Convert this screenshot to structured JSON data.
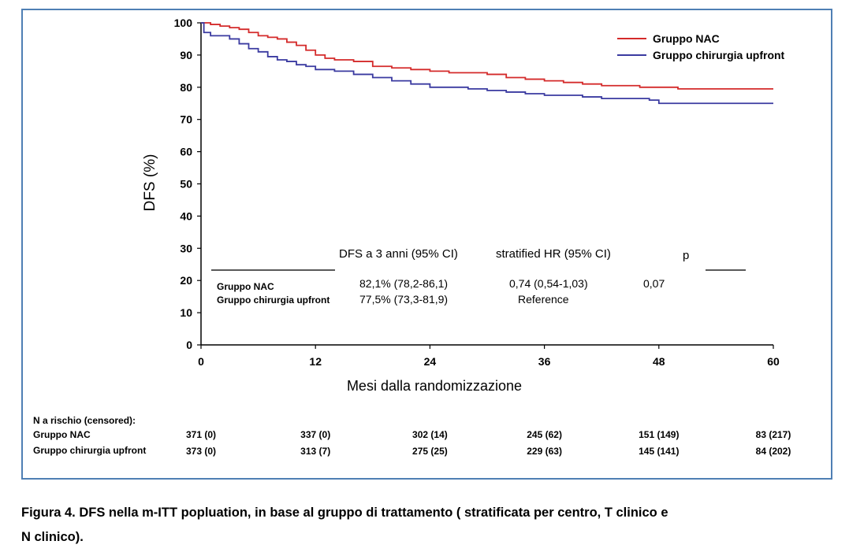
{
  "chart_data": {
    "type": "line",
    "ylabel": "DFS (%)",
    "xlabel": "Mesi dalla randomizzazione",
    "ylim": [
      0,
      100
    ],
    "xlim": [
      0,
      60
    ],
    "x_ticks": [
      0,
      12,
      24,
      36,
      48,
      60
    ],
    "y_ticks": [
      0,
      10,
      20,
      30,
      40,
      50,
      60,
      70,
      80,
      90,
      100
    ],
    "grid": false,
    "legend_position": "top-right",
    "series": [
      {
        "name": "Gruppo NAC",
        "color": "#d42a2a",
        "x": [
          0,
          1,
          2,
          3,
          4,
          5,
          6,
          7,
          8,
          9,
          10,
          11,
          12,
          13,
          14,
          16,
          18,
          20,
          22,
          24,
          26,
          28,
          30,
          32,
          34,
          36,
          38,
          40,
          42,
          44,
          46,
          47,
          50,
          55,
          60
        ],
        "y": [
          100,
          99.5,
          99,
          98.5,
          98,
          97,
          96,
          95.5,
          95,
          94,
          93,
          91.5,
          90,
          89,
          88.5,
          88,
          86.5,
          86,
          85.5,
          85,
          84.5,
          84.5,
          84,
          83,
          82.5,
          82,
          81.5,
          81,
          80.5,
          80.5,
          80,
          80,
          79.5,
          79.5,
          79.5
        ]
      },
      {
        "name": "Gruppo chirurgia upfront",
        "color": "#3a3aa0",
        "x": [
          0,
          0.3,
          1,
          2,
          3,
          4,
          5,
          6,
          7,
          8,
          9,
          10,
          11,
          12,
          14,
          16,
          18,
          20,
          22,
          24,
          26,
          28,
          30,
          32,
          34,
          36,
          38,
          40,
          42,
          44,
          46,
          47,
          48,
          50,
          55,
          60
        ],
        "y": [
          100,
          97,
          96,
          96,
          95,
          93.5,
          92,
          91,
          89.5,
          88.5,
          88,
          87,
          86.5,
          85.5,
          85,
          84,
          83,
          82,
          81,
          80,
          80,
          79.5,
          79,
          78.5,
          78,
          77.5,
          77.5,
          77,
          76.5,
          76.5,
          76.5,
          76,
          75,
          75,
          75,
          75
        ]
      }
    ]
  },
  "table": {
    "header": [
      "DFS a 3 anni (95% CI)",
      "stratified HR (95% CI)",
      "p"
    ],
    "rows": [
      {
        "label": "Gruppo NAC",
        "dfs": "82,1% (78,2-86,1)",
        "hr": "0,74 (0,54-1,03)",
        "p": "0,07"
      },
      {
        "label": "Gruppo chirurgia upfront",
        "dfs": "77,5% (73,3-81,9)",
        "hr": "Reference",
        "p": ""
      }
    ]
  },
  "at_risk": {
    "title": "N a rischio (censored):",
    "rows": [
      {
        "label": "Gruppo NAC",
        "values": [
          "371 (0)",
          "337 (0)",
          "302 (14)",
          "245 (62)",
          "151 (149)",
          "83 (217)"
        ]
      },
      {
        "label": "Gruppo chirurgia upfront",
        "values": [
          "373 (0)",
          "313 (7)",
          "275 (25)",
          "229 (63)",
          "145 (141)",
          "84 (202)"
        ]
      }
    ]
  },
  "caption": {
    "line1": "Figura 4. DFS nella m-ITT popluation, in base al gruppo di trattamento ( stratificata per centro, T clinico e",
    "line2": "N clinico)."
  }
}
